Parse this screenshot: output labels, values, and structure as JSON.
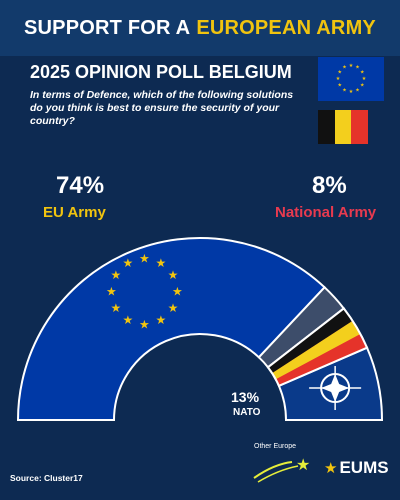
{
  "header": {
    "title_prefix": "SUPPORT FOR A",
    "title_highlight": "EUROPEAN ARMY"
  },
  "poll_title": "2025 OPINION POLL BELGIUM",
  "question": "In terms of Defence, which of the following solutions do you think is best to ensure the security of your country?",
  "results": {
    "eu": {
      "pct": "74%",
      "label": "EU Army"
    },
    "national": {
      "pct": "8%",
      "label": "National Army"
    },
    "nato": {
      "pct": "13%",
      "label": "NATO"
    }
  },
  "source": "Source: Cluster17",
  "logos": {
    "other_europe": "Other Europe",
    "eums": "EUMS"
  },
  "colors": {
    "background": "#0d2a52",
    "accent_gold": "#f1c40f",
    "eu_blue": "#0039a6",
    "national_red": "#e83a4f",
    "other_gray": "#3d4d6a"
  },
  "chart_data": {
    "type": "pie",
    "style": "semicircle donut",
    "categories": [
      "EU Army",
      "Other",
      "National Army",
      "NATO"
    ],
    "values": [
      74,
      5,
      8,
      13
    ],
    "colors": [
      "#0039a6",
      "#3d4d6a",
      "#e83a4f",
      "#0a3a8a"
    ],
    "title": "SUPPORT FOR A EUROPEAN ARMY",
    "subtitle": "2025 OPINION POLL BELGIUM"
  }
}
